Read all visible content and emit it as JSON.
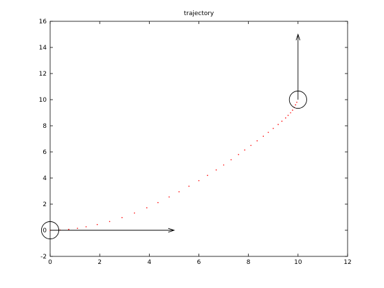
{
  "chart_data": {
    "type": "scatter",
    "title": "trajectory",
    "xlabel": "",
    "ylabel": "",
    "xlim": [
      0,
      12
    ],
    "ylim": [
      -2,
      16
    ],
    "xticks": [
      0,
      2,
      4,
      6,
      8,
      10,
      12
    ],
    "yticks": [
      -2,
      0,
      2,
      4,
      6,
      8,
      10,
      12,
      14,
      16
    ],
    "grid": false,
    "point_color": "#ff0000",
    "series": [
      {
        "x": [
          0,
          0.4,
          0.75,
          1.1,
          1.45,
          1.9,
          2.4,
          2.9,
          3.4,
          3.9,
          4.35,
          4.8,
          5.2,
          5.6,
          6.0,
          6.35,
          6.7,
          7.0,
          7.3,
          7.6,
          7.85,
          8.1,
          8.35,
          8.6,
          8.8,
          9.0,
          9.2,
          9.35,
          9.5,
          9.6,
          9.7,
          9.78,
          9.85,
          9.9,
          9.95
        ],
        "y": [
          0,
          0.02,
          0.07,
          0.15,
          0.27,
          0.44,
          0.67,
          0.97,
          1.32,
          1.72,
          2.12,
          2.55,
          2.95,
          3.37,
          3.8,
          4.2,
          4.62,
          5.0,
          5.4,
          5.8,
          6.15,
          6.5,
          6.85,
          7.2,
          7.5,
          7.8,
          8.1,
          8.35,
          8.6,
          8.8,
          9.0,
          9.2,
          9.4,
          9.6,
          9.8
        ]
      }
    ],
    "markers": [
      {
        "type": "circle",
        "x": 0,
        "y": 0,
        "radius": 0.35
      },
      {
        "type": "circle",
        "x": 10,
        "y": 10,
        "radius": 0.35
      }
    ],
    "arrows": [
      {
        "from": [
          0,
          0
        ],
        "to": [
          5,
          0
        ]
      },
      {
        "from": [
          10,
          10
        ],
        "to": [
          10,
          15
        ]
      }
    ]
  }
}
